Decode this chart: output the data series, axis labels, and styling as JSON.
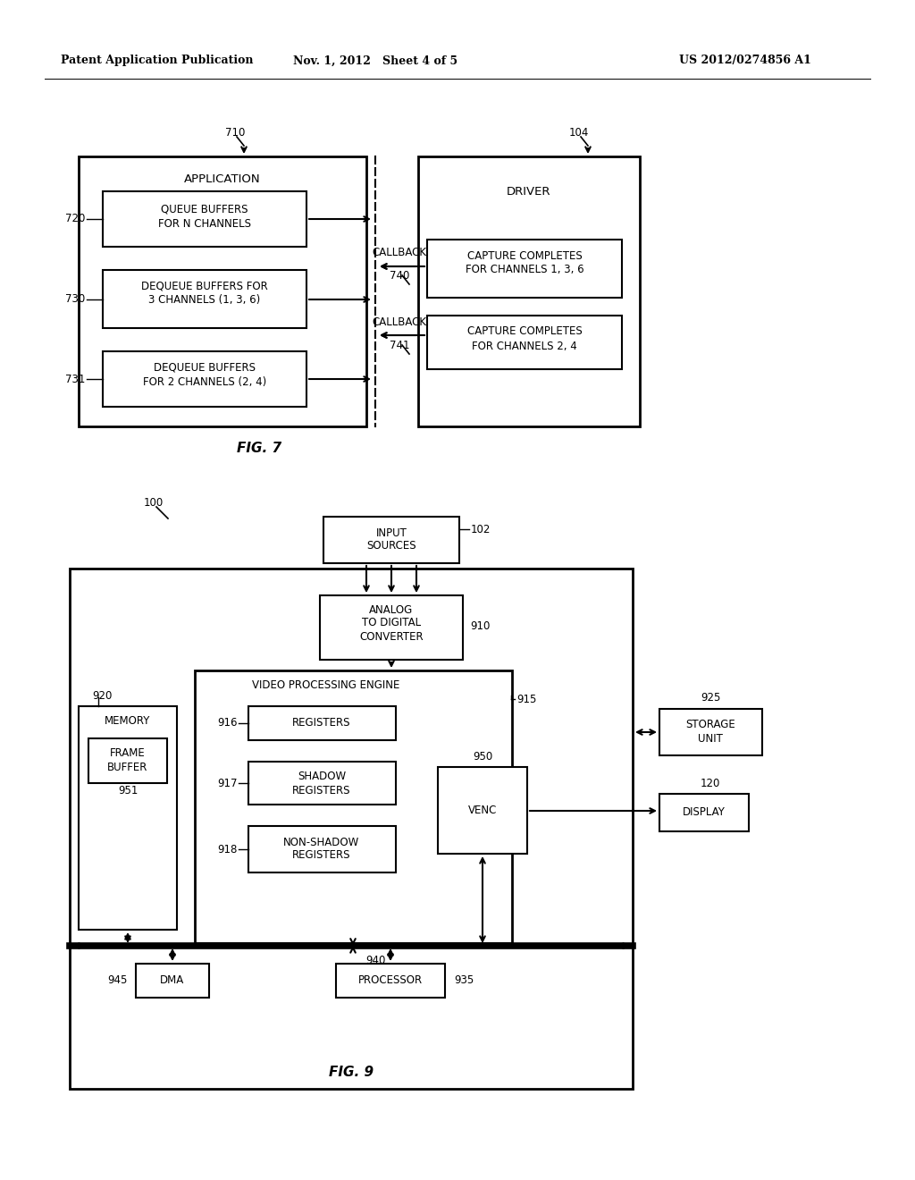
{
  "header_left": "Patent Application Publication",
  "header_mid": "Nov. 1, 2012   Sheet 4 of 5",
  "header_right": "US 2012/0274856 A1",
  "fig7_label": "FIG. 7",
  "fig9_label": "FIG. 9",
  "background": "#ffffff"
}
